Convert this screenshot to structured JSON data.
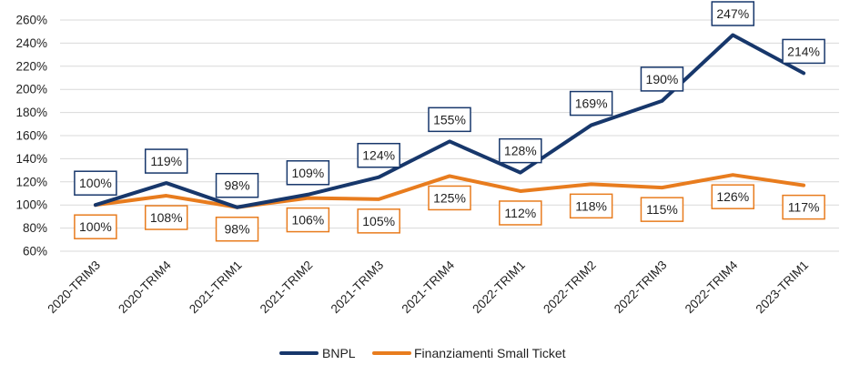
{
  "chart_data": {
    "type": "line",
    "title": "",
    "xlabel": "",
    "ylabel": "",
    "categories": [
      "2020-TRIM3",
      "2020-TRIM4",
      "2021-TRIM1",
      "2021-TRIM2",
      "2021-TRIM3",
      "2021-TRIM4",
      "2022-TRIM1",
      "2022-TRIM2",
      "2022-TRIM3",
      "2022-TRIM4",
      "2023-TRIM1"
    ],
    "ylim": [
      60,
      260
    ],
    "yticks": [
      60,
      80,
      100,
      120,
      140,
      160,
      180,
      200,
      220,
      240,
      260
    ],
    "ytick_suffix": "%",
    "grid": true,
    "legend_position": "bottom",
    "series": [
      {
        "name": "BNPL",
        "color": "#17376b",
        "values": [
          100,
          119,
          98,
          109,
          124,
          155,
          128,
          169,
          190,
          247,
          214
        ],
        "labels": [
          "100%",
          "119%",
          "98%",
          "109%",
          "124%",
          "155%",
          "128%",
          "169%",
          "190%",
          "247%",
          "214%"
        ],
        "label_position": "above"
      },
      {
        "name": "Finanziamenti Small Ticket",
        "color": "#e87c1e",
        "values": [
          100,
          108,
          98,
          106,
          105,
          125,
          112,
          118,
          115,
          126,
          117
        ],
        "labels": [
          "100%",
          "108%",
          "98%",
          "106%",
          "105%",
          "125%",
          "112%",
          "118%",
          "115%",
          "126%",
          "117%"
        ],
        "label_position": "below"
      }
    ]
  }
}
